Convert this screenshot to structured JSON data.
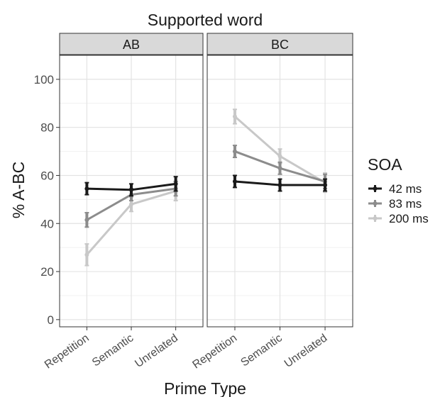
{
  "chart_data": {
    "type": "line",
    "title": "Supported word",
    "xlabel": "Prime Type",
    "ylabel": "% A-BC",
    "categories": [
      "Repetition",
      "Semantic",
      "Unrelated"
    ],
    "ylim": [
      -3,
      110
    ],
    "yticks": [
      0,
      20,
      40,
      60,
      80,
      100
    ],
    "grid": true,
    "legend": {
      "title": "SOA",
      "position": "right"
    },
    "facets": [
      {
        "label": "AB",
        "series": [
          {
            "name": "42 ms",
            "color": "#1a1a1a",
            "values": [
              54.5,
              54,
              56.5
            ],
            "err": [
              2.5,
              2.5,
              3
            ]
          },
          {
            "name": "83 ms",
            "color": "#8c8c8c",
            "values": [
              41.5,
              52,
              54.5
            ],
            "err": [
              3,
              2.5,
              3
            ]
          },
          {
            "name": "200 ms",
            "color": "#c8c8c8",
            "values": [
              27,
              48,
              53.5
            ],
            "err": [
              4.5,
              3,
              4
            ]
          }
        ]
      },
      {
        "label": "BC",
        "series": [
          {
            "name": "42 ms",
            "color": "#1a1a1a",
            "values": [
              57.5,
              56,
              56
            ],
            "err": [
              2.5,
              2.5,
              2.5
            ]
          },
          {
            "name": "83 ms",
            "color": "#8c8c8c",
            "values": [
              70,
              63,
              57.5
            ],
            "err": [
              2.5,
              2.5,
              3
            ]
          },
          {
            "name": "200 ms",
            "color": "#c8c8c8",
            "values": [
              84.5,
              68,
              57
            ],
            "err": [
              3,
              3,
              4
            ]
          }
        ]
      }
    ]
  }
}
